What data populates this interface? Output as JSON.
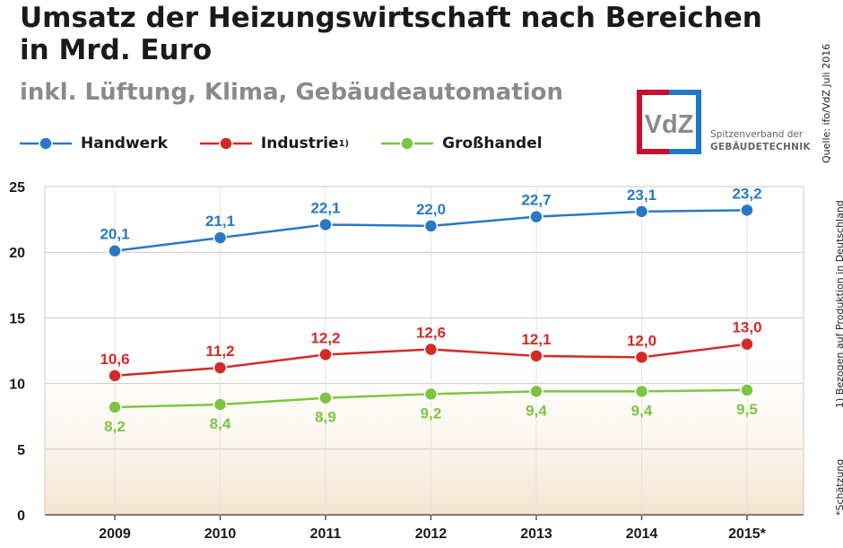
{
  "header": {
    "title": "Umsatz der Heizungswirtschaft nach Bereichen in Mrd. Euro",
    "subtitle": "inkl. Lüftung, Klima, Gebäudeautomation"
  },
  "logo": {
    "mark": "VdZ",
    "line1": "Spitzenverband der",
    "line2": "GEBÄUDETECHNIK"
  },
  "side_notes": {
    "source": "Quelle: ifo/VdZ Juli 2016",
    "footnote": "1) Bezogen auf Produktion in Deutschland",
    "estimate": "*Schätzung"
  },
  "colors": {
    "handwerk": "#2a78c4",
    "industrie": "#d42a27",
    "grosshandel": "#7dc540",
    "logo_red": "#c8102e",
    "logo_blue": "#1f78c8"
  },
  "chart_data": {
    "type": "line",
    "categories": [
      "2009",
      "2010",
      "2011",
      "2012",
      "2013",
      "2014",
      "2015*"
    ],
    "ylim": [
      0,
      25
    ],
    "yticks": [
      0,
      5,
      10,
      15,
      20,
      25
    ],
    "grid": true,
    "legend_placement": "top-left",
    "series": [
      {
        "name": "Handwerk",
        "sup": "",
        "color": "#2a78c4",
        "values": [
          20.1,
          21.1,
          22.1,
          22.0,
          22.7,
          23.1,
          23.2
        ],
        "labels": [
          "20,1",
          "21,1",
          "22,1",
          "22,0",
          "22,7",
          "23,1",
          "23,2"
        ],
        "label_position": "above"
      },
      {
        "name": "Industrie",
        "sup": "1)",
        "color": "#d42a27",
        "values": [
          10.6,
          11.2,
          12.2,
          12.6,
          12.1,
          12.0,
          13.0
        ],
        "labels": [
          "10,6",
          "11,2",
          "12,2",
          "12,6",
          "12,1",
          "12,0",
          "13,0"
        ],
        "label_position": "above"
      },
      {
        "name": "Großhandel",
        "sup": "",
        "color": "#7dc540",
        "values": [
          8.2,
          8.4,
          8.9,
          9.2,
          9.4,
          9.4,
          9.5
        ],
        "labels": [
          "8,2",
          "8,4",
          "8,9",
          "9,2",
          "9,4",
          "9,4",
          "9,5"
        ],
        "label_position": "below"
      }
    ]
  }
}
